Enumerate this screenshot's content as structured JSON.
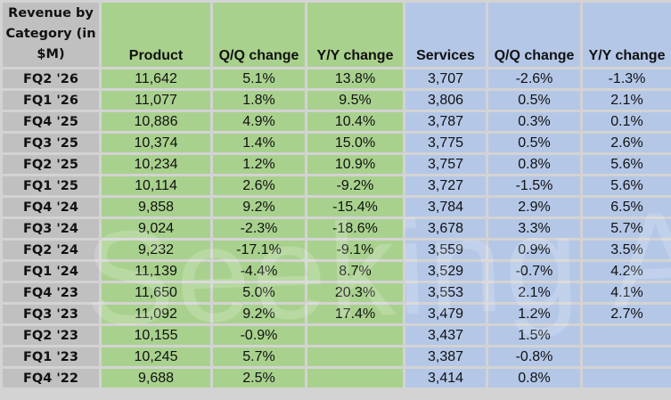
{
  "table": {
    "headers": [
      "Revenue by Category (in $M)",
      "Product",
      "Q/Q change",
      "Y/Y change",
      "Services",
      "Q/Q change",
      "Y/Y change"
    ],
    "rows": [
      [
        "FQ2 '26",
        "11,642",
        "5.1%",
        "13.8%",
        "3,707",
        "-2.6%",
        "-1.3%"
      ],
      [
        "FQ1 '26",
        "11,077",
        "1.8%",
        "9.5%",
        "3,806",
        "0.5%",
        "2.1%"
      ],
      [
        "FQ4 '25",
        "10,886",
        "4.9%",
        "10.4%",
        "3,787",
        "0.3%",
        "0.1%"
      ],
      [
        "FQ3 '25",
        "10,374",
        "1.4%",
        "15.0%",
        "3,775",
        "0.5%",
        "2.6%"
      ],
      [
        "FQ2 '25",
        "10,234",
        "1.2%",
        "10.9%",
        "3,757",
        "0.8%",
        "5.6%"
      ],
      [
        "FQ1 '25",
        "10,114",
        "2.6%",
        "-9.2%",
        "3,727",
        "-1.5%",
        "5.6%"
      ],
      [
        "FQ4 '24",
        "9,858",
        "9.2%",
        "-15.4%",
        "3,784",
        "2.9%",
        "6.5%"
      ],
      [
        "FQ3 '24",
        "9,024",
        "-2.3%",
        "-18.6%",
        "3,678",
        "3.3%",
        "5.7%"
      ],
      [
        "FQ2 '24",
        "9,232",
        "-17.1%",
        "-9.1%",
        "3,559",
        "0.9%",
        "3.5%"
      ],
      [
        "FQ1 '24",
        "11,139",
        "-4.4%",
        "8.7%",
        "3,529",
        "-0.7%",
        "4.2%"
      ],
      [
        "FQ4 '23",
        "11,650",
        "5.0%",
        "20.3%",
        "3,553",
        "2.1%",
        "4.1%"
      ],
      [
        "FQ3 '23",
        "11,092",
        "9.2%",
        "17.4%",
        "3,479",
        "1.2%",
        "2.7%"
      ],
      [
        "FQ2 '23",
        "10,155",
        "-0.9%",
        "",
        "3,437",
        "1.5%",
        ""
      ],
      [
        "FQ1 '23",
        "10,245",
        "5.7%",
        "",
        "3,387",
        "-0.8%",
        ""
      ],
      [
        "FQ4 '22",
        "9,688",
        "2.5%",
        "",
        "3,414",
        "0.8%",
        ""
      ]
    ]
  },
  "watermark": "Seeking Alpha",
  "colors": {
    "category": "#c0c0c0",
    "product": "#a9d18e",
    "services": "#b4c7e7",
    "grid": "#d3d3d3"
  }
}
